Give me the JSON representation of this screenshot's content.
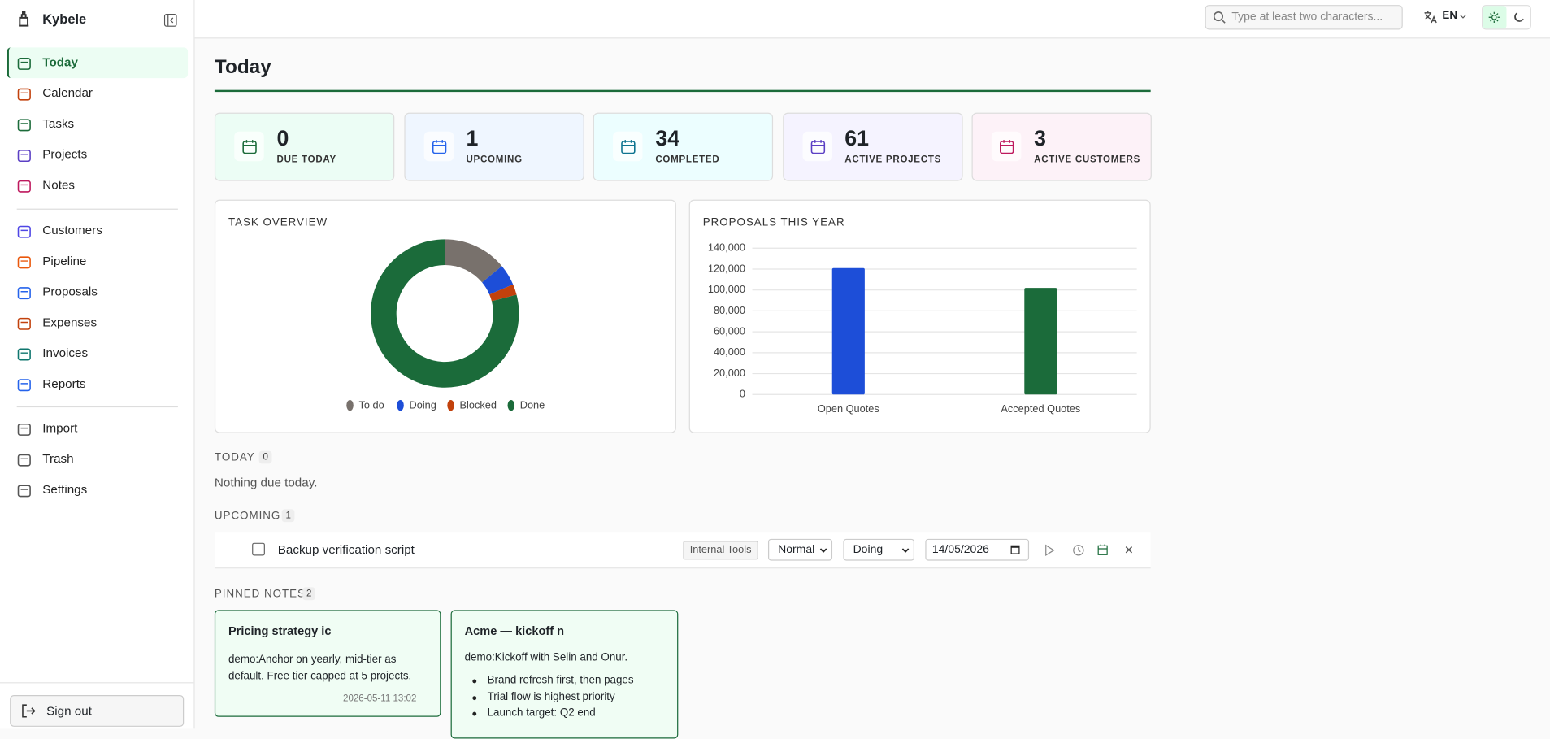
{
  "sidebar": {
    "brand": "Kybele",
    "nav": [
      [
        "Today",
        "Calendar",
        "Tasks",
        "Projects",
        "Notes"
      ],
      [
        "Customers",
        "Pipeline",
        "Proposals",
        "Expenses",
        "Invoices",
        "Reports"
      ],
      [
        "Import",
        "Trash",
        "Settings"
      ]
    ],
    "sign_out": "Sign out"
  },
  "topbar": {
    "search_placeholder": "Type at least two characters...",
    "language": "EN"
  },
  "page_title": "Today",
  "stats": [
    {
      "value": 0,
      "label": "DUE TODAY"
    },
    {
      "value": 1,
      "label": "UPCOMING"
    },
    {
      "value": 34,
      "label": "COMPLETED"
    },
    {
      "value": 61,
      "label": "ACTIVE PROJECTS"
    },
    {
      "value": 3,
      "label": "ACTIVE CUSTOMERS"
    }
  ],
  "chart_data": [
    {
      "type": "pie",
      "title": "TASK OVERVIEW",
      "donut": true,
      "categories": [
        "To do",
        "Doing",
        "Blocked",
        "Done"
      ],
      "values": [
        6,
        2,
        1,
        34
      ],
      "colors": [
        "#78716c",
        "#1d4ed8",
        "#c2410c",
        "#1b6b3a"
      ]
    },
    {
      "type": "bar",
      "title": "PROPOSALS THIS YEAR",
      "categories": [
        "Open Quotes",
        "Accepted Quotes"
      ],
      "values": [
        121000,
        102000
      ],
      "colors": [
        "#1d4ed8",
        "#1b6b3a"
      ],
      "ylim": [
        0,
        140000
      ],
      "yticks": [
        0,
        {
          "value": 20000,
          "label": "20,000"
        },
        {
          "value": 40000,
          "label": "40,000"
        },
        {
          "value": 60000,
          "label": "60,000"
        },
        {
          "value": 80000,
          "label": "80,000"
        },
        {
          "value": 100000,
          "label": "100,000"
        },
        {
          "value": 120000,
          "label": "120,000"
        },
        {
          "value": 140000,
          "label": "140,000"
        }
      ],
      "grid": true
    }
  ],
  "sections": {
    "today": {
      "label": "TODAY",
      "count": 0,
      "empty": "Nothing due today."
    },
    "upcoming": {
      "label": "UPCOMING",
      "count": 1,
      "tasks": [
        {
          "title": "Backup verification script",
          "project": "Internal Tools",
          "priority": "Normal",
          "status": "Doing",
          "date": "14/05/2026"
        }
      ]
    },
    "pinned": {
      "label": "PINNED NOTES",
      "count": 2,
      "notes": [
        {
          "title": "Pricing strategy ic",
          "body": "demo:Anchor on yearly, mid-tier as default. Free tier capped at 5 projects.",
          "timestamp": "2026-05-11 13:02"
        },
        {
          "title": "Acme — kickoff n",
          "body": "demo:Kickoff with Selin and Onur.",
          "bullets": [
            "Brand refresh first, then pages",
            "Trial flow is highest priority",
            "Launch target: Q2 end"
          ]
        }
      ]
    }
  }
}
